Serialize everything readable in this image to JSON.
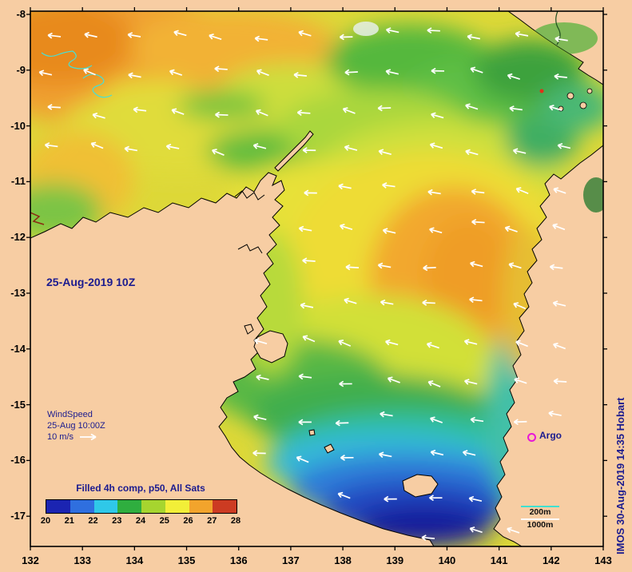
{
  "map": {
    "date_label": "25-Aug-2019 10Z",
    "wind_legend": {
      "name": "WindSpeed",
      "time": "25-Aug 10:00Z",
      "scale": "10 m/s"
    },
    "colorbar": {
      "title": "Filled 4h comp, p50, All Sats",
      "tick_labels": [
        "20",
        "21",
        "22",
        "23",
        "24",
        "25",
        "26",
        "27",
        "28"
      ],
      "segment_colors": [
        "#1b24b2",
        "#2f6fdf",
        "#2fc8e8",
        "#2fae3f",
        "#a6d52f",
        "#f2ef38",
        "#f2a42c",
        "#cc3b22"
      ]
    },
    "argo": {
      "label": "Argo",
      "marker_color": "#e817d8"
    },
    "depth_legend": [
      {
        "label": "200m",
        "line_color": "#40e0d0"
      },
      {
        "label": "1000m",
        "line_color": "#ffffff"
      }
    ],
    "credit": "IMOS 30-Aug-2019 14:35 Hobart",
    "axes": {
      "x_ticks": [
        "132",
        "133",
        "134",
        "135",
        "136",
        "137",
        "138",
        "139",
        "140",
        "141",
        "142",
        "143"
      ],
      "y_ticks": [
        "-8",
        "-9",
        "-10",
        "-11",
        "-12",
        "-13",
        "-14",
        "-15",
        "-16",
        "-17"
      ],
      "x_range": [
        132,
        143
      ],
      "y_range": [
        -8,
        -17.5
      ]
    },
    "colors": {
      "background": "#f7cda3",
      "land": "#f7cda3",
      "coastline": "#000000",
      "annotation": "#1b1b8f",
      "wind_arrow": "#ffffff",
      "contour_cyan": "#45e0d8"
    }
  }
}
